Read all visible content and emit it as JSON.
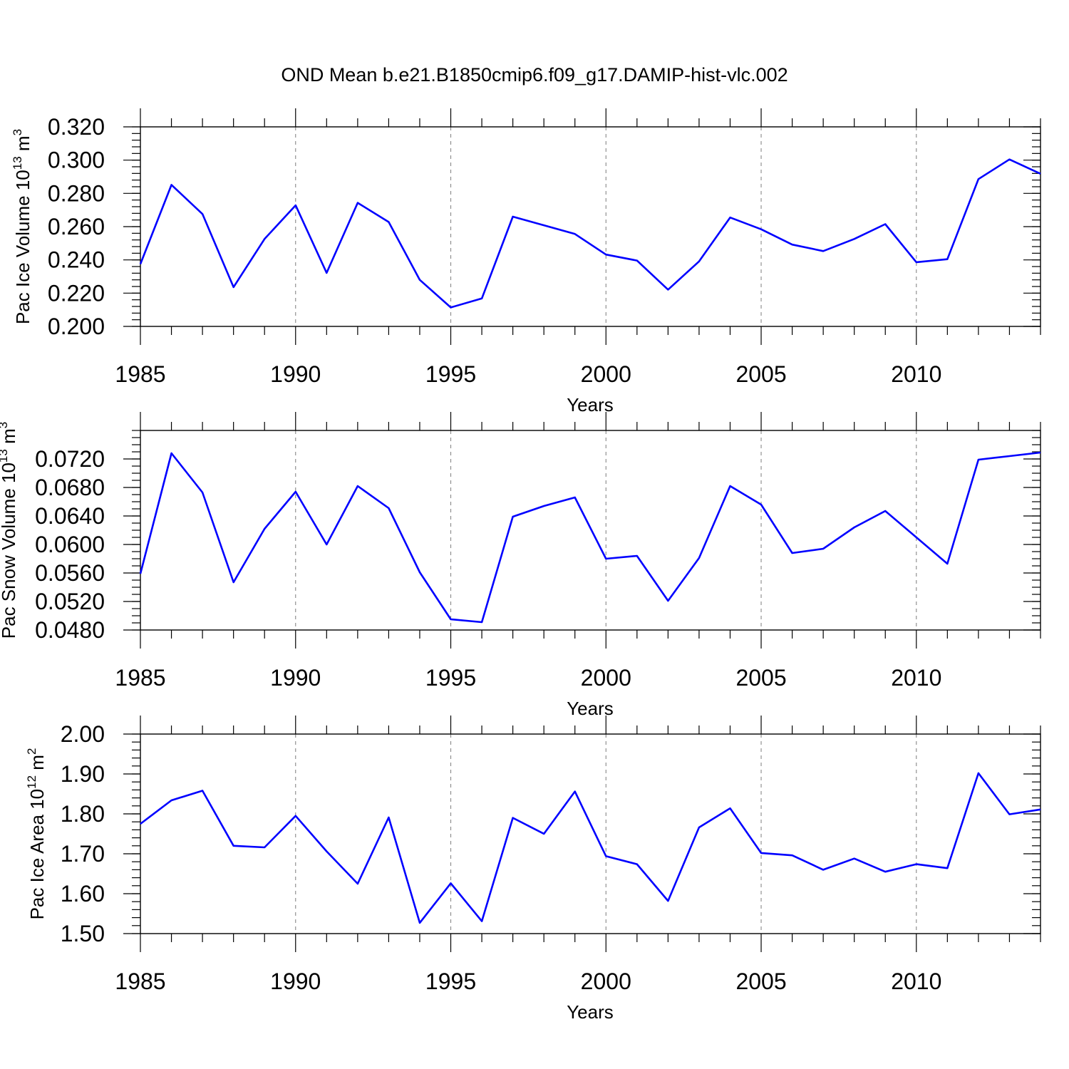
{
  "figure": {
    "title": "OND Mean b.e21.B1850cmip6.f09_g17.DAMIP-hist-vlc.002"
  },
  "colors": {
    "series": "#0000ff",
    "axes": "#000000",
    "grid": "#888888"
  },
  "chart_data": [
    {
      "type": "line",
      "title": "",
      "xlabel": "Years",
      "ylabel": {
        "text": "Pac Ice Volume 10",
        "sup1": "13",
        "mid": " m",
        "sup2": "3"
      },
      "xlim": [
        1985,
        2014
      ],
      "ylim": [
        0.2,
        0.32
      ],
      "x_major_ticks": [
        1985,
        1990,
        1995,
        2000,
        2005,
        2010
      ],
      "x_major_labels": [
        "1985",
        "1990",
        "1995",
        "2000",
        "2005",
        "2010"
      ],
      "x_grid": [
        1990,
        1995,
        2000,
        2005,
        2010
      ],
      "y_major_ticks": [
        0.2,
        0.22,
        0.24,
        0.26,
        0.28,
        0.3,
        0.32
      ],
      "y_major_labels": [
        "0.200",
        "0.220",
        "0.240",
        "0.260",
        "0.280",
        "0.300",
        "0.320"
      ],
      "y_minor_step": 0.004,
      "x": [
        1985,
        1986,
        1987,
        1988,
        1989,
        1990,
        1991,
        1992,
        1993,
        1994,
        1995,
        1996,
        1997,
        1998,
        1999,
        2000,
        2001,
        2002,
        2003,
        2004,
        2005,
        2006,
        2007,
        2008,
        2009,
        2010,
        2011,
        2012,
        2013,
        2014
      ],
      "values": [
        0.2375,
        0.2851,
        0.2676,
        0.2236,
        0.2526,
        0.2728,
        0.2322,
        0.2743,
        0.2628,
        0.228,
        0.2114,
        0.2168,
        0.266,
        0.2608,
        0.2556,
        0.2432,
        0.2396,
        0.2221,
        0.2391,
        0.2655,
        0.2584,
        0.2492,
        0.2453,
        0.2526,
        0.2615,
        0.2386,
        0.2404,
        0.2886,
        0.3004,
        0.2918
      ]
    },
    {
      "type": "line",
      "title": "",
      "xlabel": "Years",
      "ylabel": {
        "text": "Pac Snow Volume 10",
        "sup1": "13",
        "mid": " m",
        "sup2": "3"
      },
      "xlim": [
        1985,
        2014
      ],
      "ylim": [
        0.048,
        0.076
      ],
      "x_major_ticks": [
        1985,
        1990,
        1995,
        2000,
        2005,
        2010
      ],
      "x_major_labels": [
        "1985",
        "1990",
        "1995",
        "2000",
        "2005",
        "2010"
      ],
      "x_grid": [
        1990,
        1995,
        2000,
        2005,
        2010
      ],
      "y_major_ticks": [
        0.048,
        0.052,
        0.056,
        0.06,
        0.064,
        0.068,
        0.072
      ],
      "y_major_labels": [
        "0.0480",
        "0.0520",
        "0.0560",
        "0.0600",
        "0.0640",
        "0.0680",
        "0.0720"
      ],
      "y_minor_step": 0.001,
      "x": [
        1985,
        1986,
        1987,
        1988,
        1989,
        1990,
        1991,
        1992,
        1993,
        1994,
        1995,
        1996,
        1997,
        1998,
        1999,
        2000,
        2001,
        2002,
        2003,
        2004,
        2005,
        2006,
        2007,
        2008,
        2009,
        2010,
        2011,
        2012,
        2013,
        2014
      ],
      "values": [
        0.0559,
        0.0728,
        0.0673,
        0.0547,
        0.0622,
        0.0674,
        0.06,
        0.0682,
        0.0651,
        0.0561,
        0.0495,
        0.0491,
        0.0639,
        0.0654,
        0.0666,
        0.058,
        0.0584,
        0.0521,
        0.0581,
        0.0682,
        0.0656,
        0.0588,
        0.0594,
        0.0624,
        0.0647,
        0.061,
        0.0573,
        0.0719,
        0.0724,
        0.0729
      ]
    },
    {
      "type": "line",
      "title": "",
      "xlabel": "Years",
      "ylabel": {
        "text": "Pac Ice Area 10",
        "sup1": "12",
        "mid": " m",
        "sup2": "2"
      },
      "xlim": [
        1985,
        2014
      ],
      "ylim": [
        1.5,
        2.0
      ],
      "x_major_ticks": [
        1985,
        1990,
        1995,
        2000,
        2005,
        2010
      ],
      "x_major_labels": [
        "1985",
        "1990",
        "1995",
        "2000",
        "2005",
        "2010"
      ],
      "x_grid": [
        1990,
        1995,
        2000,
        2005,
        2010
      ],
      "y_major_ticks": [
        1.5,
        1.6,
        1.7,
        1.8,
        1.9,
        2.0
      ],
      "y_major_labels": [
        "1.50",
        "1.60",
        "1.70",
        "1.80",
        "1.90",
        "2.00"
      ],
      "y_minor_step": 0.02,
      "x": [
        1985,
        1986,
        1987,
        1988,
        1989,
        1990,
        1991,
        1992,
        1993,
        1994,
        1995,
        1996,
        1997,
        1998,
        1999,
        2000,
        2001,
        2002,
        2003,
        2004,
        2005,
        2006,
        2007,
        2008,
        2009,
        2010,
        2011,
        2012,
        2013,
        2014
      ],
      "values": [
        1.775,
        1.834,
        1.858,
        1.72,
        1.716,
        1.795,
        1.706,
        1.625,
        1.791,
        1.527,
        1.626,
        1.531,
        1.79,
        1.75,
        1.856,
        1.694,
        1.674,
        1.582,
        1.766,
        1.814,
        1.702,
        1.696,
        1.66,
        1.688,
        1.655,
        1.674,
        1.664,
        1.902,
        1.799,
        1.811
      ]
    }
  ]
}
